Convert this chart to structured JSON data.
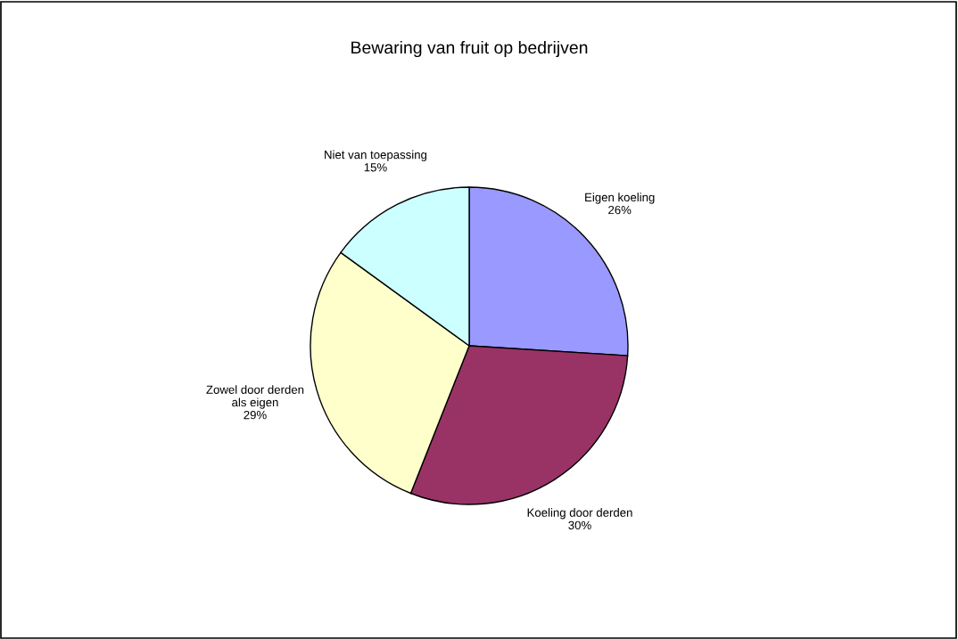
{
  "chart_data": {
    "type": "pie",
    "title": "Bewaring van fruit op bedrijven",
    "categories": [
      "Eigen koeling",
      "Koeling door derden",
      "Zowel door derden\nals eigen",
      "Niet van toepassing"
    ],
    "values": [
      26,
      30,
      29,
      15
    ],
    "value_labels": [
      "26%",
      "30%",
      "29%",
      "15%"
    ],
    "colors": [
      "#9999ff",
      "#993366",
      "#ffffcc",
      "#ccffff"
    ],
    "legend": false
  }
}
